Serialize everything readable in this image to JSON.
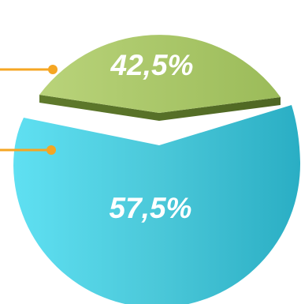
{
  "chart_data": {
    "type": "pie",
    "title": "",
    "exploded": true,
    "style": "3d",
    "slices": [
      {
        "value": 42.5,
        "label": "42,5%",
        "color": "#9bbb59"
      },
      {
        "value": 57.5,
        "label": "57,5%",
        "color": "#4bc8d9"
      }
    ],
    "leader_color": "#f5a623"
  }
}
